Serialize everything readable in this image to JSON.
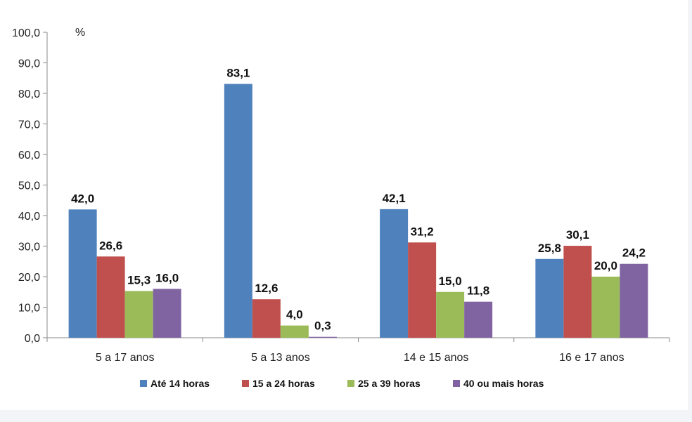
{
  "chart_data": {
    "type": "bar",
    "unit": "%",
    "categories": [
      "5 a 17 anos",
      "5 a 13 anos",
      "14 e 15 anos",
      "16 e 17 anos"
    ],
    "series": [
      {
        "name": "Até 14 horas",
        "color": "#4f81bd",
        "values": [
          42.0,
          83.1,
          42.1,
          25.8
        ],
        "labels": [
          "42,0",
          "83,1",
          "42,1",
          "25,8"
        ]
      },
      {
        "name": "15 a 24 horas",
        "color": "#c0504d",
        "values": [
          26.6,
          12.6,
          31.2,
          30.1
        ],
        "labels": [
          "26,6",
          "12,6",
          "31,2",
          "30,1"
        ]
      },
      {
        "name": "25 a 39 horas",
        "color": "#9bbb59",
        "values": [
          15.3,
          4.0,
          15.0,
          20.0
        ],
        "labels": [
          "15,3",
          "4,0",
          "15,0",
          "20,0"
        ]
      },
      {
        "name": "40 ou mais horas",
        "color": "#8064a2",
        "values": [
          16.0,
          0.3,
          11.8,
          24.2
        ],
        "labels": [
          "16,0",
          "0,3",
          "11,8",
          "24,2"
        ]
      }
    ],
    "ylim": [
      0,
      100
    ],
    "yticks": [
      {
        "value": 0,
        "label": "0,0"
      },
      {
        "value": 10,
        "label": "10,0"
      },
      {
        "value": 20,
        "label": "20,0"
      },
      {
        "value": 30,
        "label": "30,0"
      },
      {
        "value": 40,
        "label": "40,0"
      },
      {
        "value": 50,
        "label": "50,0"
      },
      {
        "value": 60,
        "label": "60,0"
      },
      {
        "value": 70,
        "label": "70,0"
      },
      {
        "value": 80,
        "label": "80,0"
      },
      {
        "value": 90,
        "label": "90,0"
      },
      {
        "value": 100,
        "label": "100,0"
      }
    ],
    "grid": false,
    "legend_position": "bottom"
  }
}
